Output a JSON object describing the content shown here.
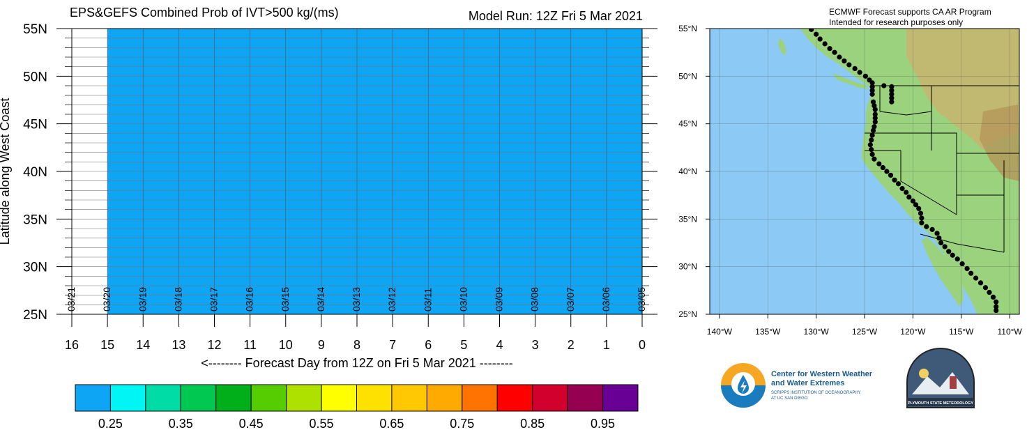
{
  "header": {
    "title": "EPS&GEFS Combined Prob of IVT>500 kg/(ms)",
    "model_run": "Model Run: 12Z Fri 5 Mar 2021"
  },
  "chart_data": [
    {
      "type": "heatmap",
      "title": "EPS&GEFS Combined Prob of IVT>500 kg/(ms)",
      "xlabel": "<-------- Forecast Day from 12Z on Fri 5 Mar 2021 --------",
      "ylabel": "Latitude along West Coast",
      "x_ticks": [
        16,
        15,
        14,
        13,
        12,
        11,
        10,
        9,
        8,
        7,
        6,
        5,
        4,
        3,
        2,
        1,
        0
      ],
      "y_ticks": [
        "55N",
        "50N",
        "45N",
        "40N",
        "35N",
        "30N",
        "25N"
      ],
      "xlim": [
        16,
        0
      ],
      "ylim": [
        25,
        55
      ],
      "date_labels": [
        {
          "day": 16,
          "label": "03/21"
        },
        {
          "day": 15,
          "label": "03/20"
        },
        {
          "day": 14,
          "label": "03/19"
        },
        {
          "day": 13,
          "label": "03/18"
        },
        {
          "day": 12,
          "label": "03/17"
        },
        {
          "day": 11,
          "label": "03/16"
        },
        {
          "day": 10,
          "label": "03/15"
        },
        {
          "day": 9,
          "label": "03/14"
        },
        {
          "day": 8,
          "label": "03/13"
        },
        {
          "day": 7,
          "label": "03/12"
        },
        {
          "day": 6,
          "label": "03/11"
        },
        {
          "day": 5,
          "label": "03/10"
        },
        {
          "day": 4,
          "label": "03/09"
        },
        {
          "day": 3,
          "label": "03/08"
        },
        {
          "day": 2,
          "label": "03/07"
        },
        {
          "day": 1,
          "label": "03/06"
        },
        {
          "day": 0,
          "label": "03/05"
        }
      ],
      "filled_region": {
        "day_from": 0,
        "day_to": 15,
        "lat_from": 25,
        "lat_to": 55,
        "color": "#0fa5f5"
      },
      "grid": true,
      "colorbar": {
        "colors": [
          "#0fa5f5",
          "#00f5f5",
          "#00dca5",
          "#00c850",
          "#00af19",
          "#55cd00",
          "#afe100",
          "#ffff00",
          "#ffe100",
          "#ffc800",
          "#ffaa00",
          "#ff7300",
          "#ff0000",
          "#d2002d",
          "#960050",
          "#690096"
        ],
        "labels": [
          "0.25",
          "0.35",
          "0.45",
          "0.55",
          "0.65",
          "0.75",
          "0.85",
          "0.95"
        ]
      }
    },
    {
      "type": "scatter",
      "title": "",
      "xlabel": "",
      "ylabel": "",
      "x_ticks": [
        "140°W",
        "135°W",
        "130°W",
        "125°W",
        "120°W",
        "115°W",
        "110°W"
      ],
      "y_ticks": [
        "55°N",
        "50°N",
        "45°N",
        "40°N",
        "35°N",
        "30°N",
        "25°N"
      ],
      "xlim": [
        -141,
        -109
      ],
      "ylim": [
        25,
        55
      ],
      "points": [
        {
          "lon": -130.5,
          "lat": 54.9
        },
        {
          "lon": -130.0,
          "lat": 54.4
        },
        {
          "lon": -129.6,
          "lat": 53.9
        },
        {
          "lon": -129.1,
          "lat": 53.4
        },
        {
          "lon": -128.6,
          "lat": 52.9
        },
        {
          "lon": -128.1,
          "lat": 52.5
        },
        {
          "lon": -127.6,
          "lat": 52.0
        },
        {
          "lon": -127.1,
          "lat": 51.6
        },
        {
          "lon": -126.6,
          "lat": 51.2
        },
        {
          "lon": -126.0,
          "lat": 50.8
        },
        {
          "lon": -125.5,
          "lat": 50.4
        },
        {
          "lon": -124.9,
          "lat": 50.0
        },
        {
          "lon": -124.5,
          "lat": 49.6
        },
        {
          "lon": -124.2,
          "lat": 49.3
        },
        {
          "lon": -124.2,
          "lat": 48.9
        },
        {
          "lon": -124.2,
          "lat": 48.5
        },
        {
          "lon": -124.2,
          "lat": 48.1
        },
        {
          "lon": -123.0,
          "lat": 49.0
        },
        {
          "lon": -122.2,
          "lat": 48.9
        },
        {
          "lon": -122.2,
          "lat": 48.5
        },
        {
          "lon": -122.2,
          "lat": 48.1
        },
        {
          "lon": -122.2,
          "lat": 47.7
        },
        {
          "lon": -122.2,
          "lat": 47.3
        },
        {
          "lon": -124.1,
          "lat": 47.3
        },
        {
          "lon": -124.0,
          "lat": 46.9
        },
        {
          "lon": -123.9,
          "lat": 46.5
        },
        {
          "lon": -123.9,
          "lat": 46.0
        },
        {
          "lon": -123.9,
          "lat": 45.6
        },
        {
          "lon": -123.9,
          "lat": 45.2
        },
        {
          "lon": -124.0,
          "lat": 44.7
        },
        {
          "lon": -124.1,
          "lat": 44.3
        },
        {
          "lon": -124.2,
          "lat": 43.8
        },
        {
          "lon": -124.3,
          "lat": 43.3
        },
        {
          "lon": -124.4,
          "lat": 42.8
        },
        {
          "lon": -124.3,
          "lat": 42.3
        },
        {
          "lon": -124.2,
          "lat": 41.8
        },
        {
          "lon": -124.0,
          "lat": 41.3
        },
        {
          "lon": -123.5,
          "lat": 40.8
        },
        {
          "lon": -123.1,
          "lat": 40.4
        },
        {
          "lon": -122.7,
          "lat": 40.0
        },
        {
          "lon": -122.3,
          "lat": 39.6
        },
        {
          "lon": -121.9,
          "lat": 39.1
        },
        {
          "lon": -121.5,
          "lat": 38.7
        },
        {
          "lon": -121.1,
          "lat": 38.2
        },
        {
          "lon": -120.7,
          "lat": 37.8
        },
        {
          "lon": -120.4,
          "lat": 37.3
        },
        {
          "lon": -120.0,
          "lat": 36.9
        },
        {
          "lon": -119.7,
          "lat": 36.5
        },
        {
          "lon": -119.4,
          "lat": 36.1
        },
        {
          "lon": -119.2,
          "lat": 35.6
        },
        {
          "lon": -119.1,
          "lat": 35.1
        },
        {
          "lon": -119.1,
          "lat": 34.6
        },
        {
          "lon": -118.6,
          "lat": 34.2
        },
        {
          "lon": -118.0,
          "lat": 33.9
        },
        {
          "lon": -117.5,
          "lat": 33.5
        },
        {
          "lon": -117.3,
          "lat": 33.0
        },
        {
          "lon": -117.1,
          "lat": 32.5
        },
        {
          "lon": -116.7,
          "lat": 32.1
        },
        {
          "lon": -116.3,
          "lat": 31.6
        },
        {
          "lon": -115.9,
          "lat": 31.2
        },
        {
          "lon": -115.4,
          "lat": 30.8
        },
        {
          "lon": -114.9,
          "lat": 30.3
        },
        {
          "lon": -114.4,
          "lat": 29.8
        },
        {
          "lon": -114.0,
          "lat": 29.3
        },
        {
          "lon": -113.5,
          "lat": 28.8
        },
        {
          "lon": -113.0,
          "lat": 28.3
        },
        {
          "lon": -112.5,
          "lat": 27.8
        },
        {
          "lon": -112.1,
          "lat": 27.3
        },
        {
          "lon": -111.7,
          "lat": 26.8
        },
        {
          "lon": -111.4,
          "lat": 26.3
        },
        {
          "lon": -111.4,
          "lat": 25.8
        },
        {
          "lon": -111.4,
          "lat": 25.4
        }
      ]
    }
  ],
  "map": {
    "ocean_color": "#8ccaf5",
    "land_color": "#9bd27d",
    "credit_line1": "ECMWF Forecast supports CA AR Program",
    "credit_line2": "Intended for research purposes only"
  },
  "logos": {
    "cw3e_name_line1": "Center for Western Weather",
    "cw3e_name_line2": "and Water Extremes",
    "cw3e_sub_line1": "SCRIPPS INSTITUTION OF OCEANOGRAPHY",
    "cw3e_sub_line2": "AT UC SAN DIEGO",
    "psu_name": "PLYMOUTH STATE METEOROLOGY"
  }
}
